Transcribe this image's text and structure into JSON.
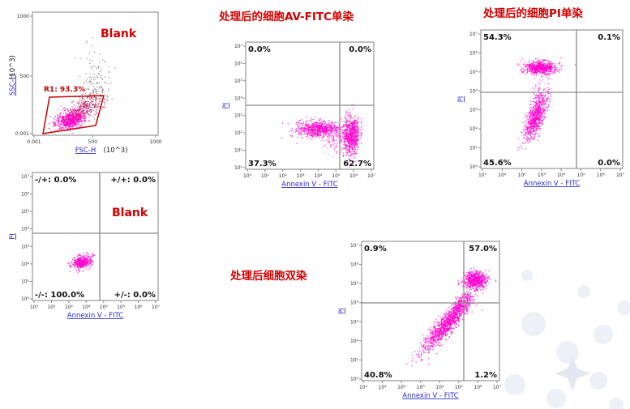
{
  "titles": {
    "av_single": "处理后的细胞AV-FITC单染",
    "pi_single": "处理后的细胞PI单染",
    "double": "处理后细胞双染"
  },
  "colors": {
    "title_red": "#d40000",
    "dots": "#ff00cc",
    "gate": "#c40000",
    "axis_label_blue": "#2a2ad0"
  },
  "chart_data": [
    {
      "id": "scatter-gate",
      "type": "scatter",
      "annotation": "Blank",
      "xlabel": "FSC-H",
      "xunit": "(10^3)",
      "ylabel": "SSC-H",
      "yunit": "(10^3)",
      "log_scale": true,
      "xticks": [
        "0.001",
        "500",
        "1000"
      ],
      "yticks": [
        "1000",
        "500",
        "0.001"
      ],
      "gate": {
        "name": "R1",
        "percent": "93.3%",
        "label": "R1: 93.3%"
      },
      "quadrants": []
    },
    {
      "id": "blank-quadrant",
      "type": "scatter",
      "annotation": "Blank",
      "xlabel": "Annexin V - FITC",
      "ylabel": "PI",
      "log_scale": true,
      "xticks": [
        "10⁰",
        "10¹",
        "10²",
        "10³",
        "10⁴",
        "10⁵",
        "10⁶",
        "10⁷"
      ],
      "yticks": [
        "10⁷",
        "10⁶",
        "10⁵",
        "10⁴",
        "10³",
        "10²",
        "10¹",
        "10⁰"
      ],
      "quadrants": [
        {
          "pos": "upper-left",
          "label": "-/+: 0.0%"
        },
        {
          "pos": "upper-right",
          "label": "+/+: 0.0%"
        },
        {
          "pos": "lower-left",
          "label": "-/-: 100.0%"
        },
        {
          "pos": "lower-right",
          "label": "+/-: 0.0%"
        }
      ]
    },
    {
      "id": "av-single",
      "type": "scatter",
      "xlabel": "Annexin V - FITC",
      "ylabel": "PI",
      "log_scale": true,
      "xticks": [
        "10⁰",
        "10¹",
        "10²",
        "10³",
        "10⁴",
        "10⁵",
        "10⁶",
        "10⁷"
      ],
      "yticks": [
        "10⁷",
        "10⁶",
        "10⁵",
        "10⁴",
        "10³",
        "10²",
        "10¹",
        "10⁰"
      ],
      "quadrants": [
        {
          "pos": "upper-left",
          "label": "0.0%"
        },
        {
          "pos": "upper-right",
          "label": "0.0%"
        },
        {
          "pos": "lower-left",
          "label": "37.3%"
        },
        {
          "pos": "lower-right",
          "label": "62.7%"
        }
      ]
    },
    {
      "id": "pi-single",
      "type": "scatter",
      "xlabel": "Annexin V - FITC",
      "ylabel": "PI",
      "log_scale": true,
      "xticks": [
        "10⁰",
        "10¹",
        "10²",
        "10³",
        "10⁴",
        "10⁵",
        "10⁶",
        "10⁷"
      ],
      "yticks": [
        "10⁷",
        "10⁶",
        "10⁵",
        "10⁴",
        "10³",
        "10²",
        "10¹",
        "10⁰"
      ],
      "quadrants": [
        {
          "pos": "upper-left",
          "label": "54.3%"
        },
        {
          "pos": "upper-right",
          "label": "0.1%"
        },
        {
          "pos": "lower-left",
          "label": "45.6%"
        },
        {
          "pos": "lower-right",
          "label": "0.0%"
        }
      ]
    },
    {
      "id": "double-stain",
      "type": "scatter",
      "xlabel": "Annexin V - FITC",
      "ylabel": "PI",
      "log_scale": true,
      "xticks": [
        "10⁰",
        "10¹",
        "10²",
        "10³",
        "10⁴",
        "10⁵",
        "10⁶",
        "10⁷"
      ],
      "yticks": [
        "10⁷",
        "10⁶",
        "10⁵",
        "10⁴",
        "10³",
        "10²",
        "10¹",
        "10⁰"
      ],
      "quadrants": [
        {
          "pos": "upper-left",
          "label": "0.9%"
        },
        {
          "pos": "upper-right",
          "label": "57.0%"
        },
        {
          "pos": "lower-left",
          "label": "40.8%"
        },
        {
          "pos": "lower-right",
          "label": "1.2%"
        }
      ]
    }
  ]
}
